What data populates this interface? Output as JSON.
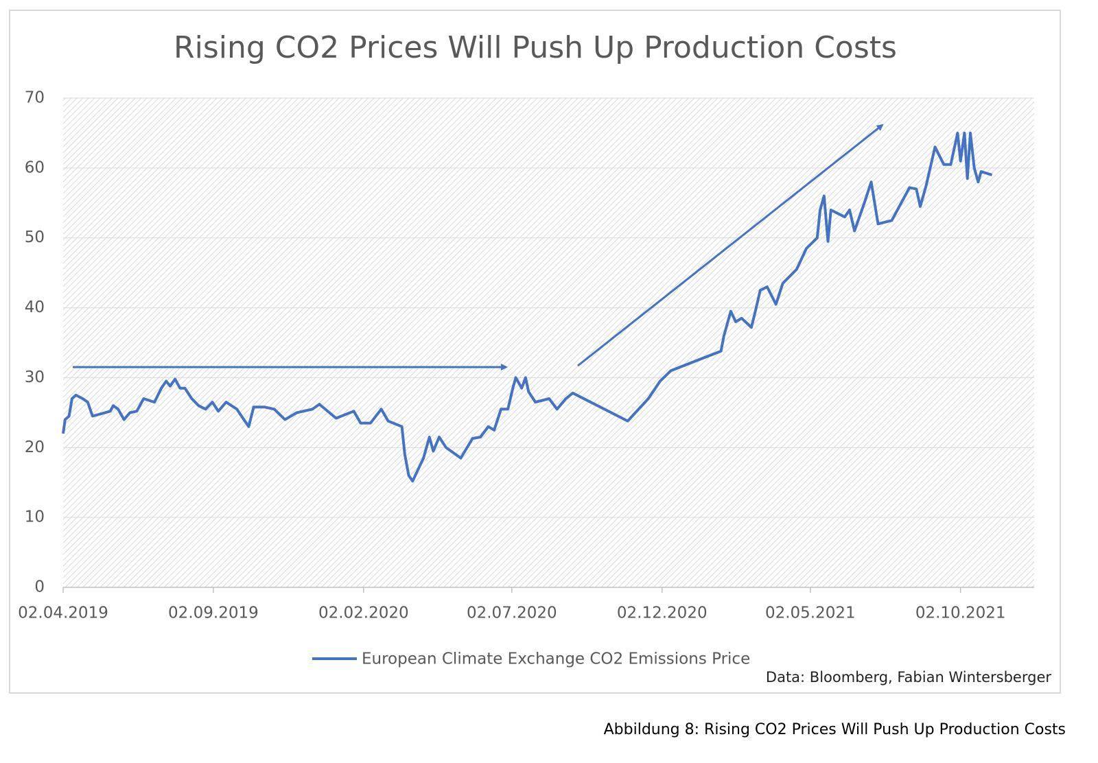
{
  "chart_data": {
    "type": "line",
    "title": "Rising CO2 Prices Will Push Up Production Costs",
    "source": "Data: Bloomberg, Fabian Wintersberger",
    "caption": "Abbildung 8: Rising CO2 Prices Will Push Up Production Costs",
    "x": [
      "02.04.2019",
      "04.04.2019",
      "08.04.2019",
      "11.04.2019",
      "15.04.2019",
      "22.04.2019",
      "27.04.2019",
      "02.05.2019",
      "20.05.2019",
      "23.05.2019",
      "28.05.2019",
      "03.06.2019",
      "09.06.2019",
      "16.06.2019",
      "23.06.2019",
      "04.07.2019",
      "11.07.2019",
      "16.07.2019",
      "20.07.2019",
      "25.07.2019",
      "30.07.2019",
      "04.08.2019",
      "11.08.2019",
      "18.08.2019",
      "25.08.2019",
      "01.09.2019",
      "07.09.2019",
      "15.09.2019",
      "26.09.2019",
      "03.10.2019",
      "08.10.2019",
      "13.10.2019",
      "24.10.2019",
      "03.11.2019",
      "14.11.2019",
      "26.11.2019",
      "12.12.2019",
      "19.12.2019",
      "05.01.2020",
      "23.01.2020",
      "30.01.2020",
      "09.02.2020",
      "20.02.2020",
      "27.02.2020",
      "12.03.2020",
      "15.03.2020",
      "19.03.2020",
      "23.03.2020",
      "29.03.2020",
      "03.04.2020",
      "09.04.2020",
      "13.04.2020",
      "19.04.2020",
      "26.04.2020",
      "11.05.2020",
      "23.05.2020",
      "31.05.2020",
      "08.06.2020",
      "14.06.2020",
      "21.06.2020",
      "28.06.2020",
      "03.07.2020",
      "06.07.2020",
      "12.07.2020",
      "16.07.2020",
      "19.07.2020",
      "26.07.2020",
      "09.08.2020",
      "17.08.2020",
      "26.08.2020",
      "02.09.2020",
      "28.10.2020",
      "18.11.2020",
      "30.11.2020",
      "11.12.2020",
      "31.01.2021",
      "03.02.2021",
      "10.02.2021",
      "15.02.2021",
      "21.02.2021",
      "03.03.2021",
      "07.03.2021",
      "12.03.2021",
      "19.03.2021",
      "28.03.2021",
      "04.04.2021",
      "18.04.2021",
      "28.04.2021",
      "09.05.2021",
      "12.05.2021",
      "16.05.2021",
      "20.05.2021",
      "23.05.2021",
      "06.06.2021",
      "11.06.2021",
      "16.06.2021",
      "26.06.2021",
      "03.07.2021",
      "10.07.2021",
      "24.07.2021",
      "11.08.2021",
      "18.08.2021",
      "22.08.2021",
      "28.08.2021",
      "06.09.2021",
      "15.09.2021",
      "22.09.2021",
      "29.09.2021",
      "02.10.2021",
      "06.10.2021",
      "09.10.2021",
      "12.10.2021",
      "16.10.2021",
      "20.10.2021",
      "23.10.2021",
      "03.11.2021"
    ],
    "series": [
      {
        "name": "European Climate Exchange CO2 Emissions Price",
        "color": "#4472c4",
        "values": [
          22,
          24,
          24.5,
          27,
          27.5,
          27,
          26.5,
          24.5,
          25.2,
          26,
          25.5,
          24,
          25,
          25.2,
          27,
          26.5,
          28.5,
          29.5,
          28.8,
          29.8,
          28.5,
          28.5,
          27,
          26,
          25.5,
          26.5,
          25.2,
          26.5,
          25.5,
          24,
          23,
          25.8,
          25.8,
          25.5,
          24,
          25,
          25.5,
          26.2,
          24.2,
          25.2,
          23.5,
          23.5,
          25.5,
          23.8,
          23,
          19,
          16,
          15.2,
          17,
          18.5,
          21.5,
          19.5,
          21.5,
          20,
          18.5,
          21.3,
          21.5,
          23,
          22.5,
          25.5,
          25.5,
          28.5,
          30,
          28.5,
          30,
          28,
          26.5,
          27,
          25.5,
          27,
          27.8,
          23.8,
          27,
          29.5,
          31,
          33.8,
          36,
          39.5,
          38,
          38.5,
          37.2,
          39.5,
          42.5,
          43,
          40.5,
          43.5,
          45.5,
          48.5,
          50,
          54,
          56,
          49.5,
          54,
          53,
          54,
          51,
          55,
          58,
          52,
          52.5,
          57.2,
          57,
          54.5,
          57.5,
          63,
          60.5,
          60.5,
          65,
          61,
          65,
          58.5,
          65,
          60,
          58,
          59.5,
          59
        ]
      }
    ],
    "xlim": [
      "02.04.2019",
      "16.12.2021"
    ],
    "xticks": [
      "02.04.2019",
      "02.09.2019",
      "02.02.2020",
      "02.07.2020",
      "02.12.2020",
      "02.05.2021",
      "02.10.2021"
    ],
    "ylim": [
      0,
      70
    ],
    "yticks": [
      0,
      10,
      20,
      30,
      40,
      50,
      60,
      70
    ],
    "grid": true,
    "legend": "bottom"
  }
}
